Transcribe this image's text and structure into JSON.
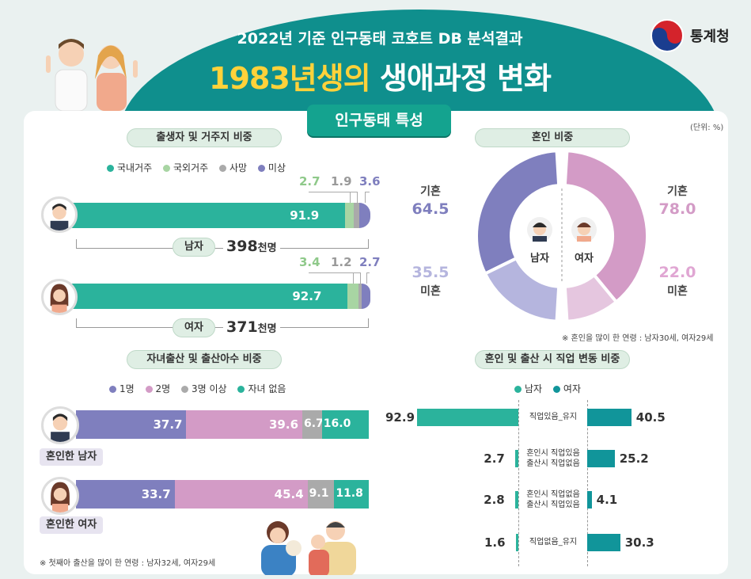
{
  "header": {
    "subtitle": "2022년 기준 인구동태 코호트 DB 분석결과",
    "title_highlight": "1983년생의",
    "title_rest": " 생애과정 변화",
    "logo_text": "통계청"
  },
  "section_title": "인구동태 특성",
  "unit": "(단위: %)",
  "residence": {
    "title": "출생자 및 거주지 비중",
    "legend": [
      "국내거주",
      "국외거주",
      "사망",
      "미상"
    ],
    "male_label": "남자",
    "male_count": "398",
    "female_label": "여자",
    "female_count": "371",
    "count_unit": "천명"
  },
  "marriage": {
    "title": "혼인 비중",
    "male_center": "남자",
    "female_center": "여자",
    "married_label": "기혼",
    "unmarried_label": "미혼",
    "note": "※ 혼인을 많이 한 연령 : 남자30세, 여자29세"
  },
  "childbirth": {
    "title": "자녀출산 및 출산아수 비중",
    "legend": [
      "1명",
      "2명",
      "3명 이상",
      "자녀 없음"
    ],
    "male_tag": "혼인한 남자",
    "female_tag": "혼인한 여자",
    "note": "※ 첫째아 출산을 많이 한 연령 : 남자32세, 여자29세"
  },
  "job": {
    "title": "혼인 및 출산 시 직업 변동 비중",
    "legend": [
      "남자",
      "여자"
    ],
    "rows": [
      {
        "label1": "직업있음_유지",
        "label2": ""
      },
      {
        "label1": "혼인시 직업있음",
        "label2": "출산시 직업없음"
      },
      {
        "label1": "혼인시 직업없음",
        "label2": "출산시 직업있음"
      },
      {
        "label1": "직업없음_유지",
        "label2": ""
      }
    ]
  },
  "colors": {
    "teal": "#2bb39c",
    "green_light": "#a8d5a3",
    "grey": "#aaaaaa",
    "purple": "#7f7fbe",
    "pink": "#d39bc6",
    "pink_light": "#e5c6df",
    "purple_light": "#b5b5de",
    "dark_teal": "#11959a"
  },
  "chart_data": [
    {
      "type": "bar",
      "title": "출생자 및 거주지 비중",
      "categories": [
        "남자",
        "여자"
      ],
      "series": [
        {
          "name": "국내거주",
          "values": [
            91.9,
            92.7
          ]
        },
        {
          "name": "국외거주",
          "values": [
            2.7,
            3.4
          ]
        },
        {
          "name": "사망",
          "values": [
            1.9,
            1.2
          ]
        },
        {
          "name": "미상",
          "values": [
            3.6,
            2.7
          ]
        }
      ]
    },
    {
      "type": "pie",
      "title": "혼인 비중",
      "categories": [
        "남자",
        "여자"
      ],
      "series": [
        {
          "name": "기혼",
          "values": [
            64.5,
            78.0
          ]
        },
        {
          "name": "미혼",
          "values": [
            35.5,
            22.0
          ]
        }
      ]
    },
    {
      "type": "bar",
      "title": "자녀출산 및 출산아수 비중",
      "categories": [
        "혼인한 남자",
        "혼인한 여자"
      ],
      "series": [
        {
          "name": "1명",
          "values": [
            37.7,
            33.7
          ]
        },
        {
          "name": "2명",
          "values": [
            39.6,
            45.4
          ]
        },
        {
          "name": "3명 이상",
          "values": [
            6.7,
            9.1
          ]
        },
        {
          "name": "자녀 없음",
          "values": [
            16.0,
            11.8
          ]
        }
      ]
    },
    {
      "type": "bar",
      "title": "혼인 및 출산 시 직업 변동 비중",
      "categories": [
        "직업있음_유지",
        "혼인시 직업있음 출산시 직업없음",
        "혼인시 직업없음 출산시 직업있음",
        "직업없음_유지"
      ],
      "series": [
        {
          "name": "남자",
          "values": [
            92.9,
            2.7,
            2.8,
            1.6
          ]
        },
        {
          "name": "여자",
          "values": [
            40.5,
            25.2,
            4.1,
            30.3
          ]
        }
      ]
    }
  ]
}
